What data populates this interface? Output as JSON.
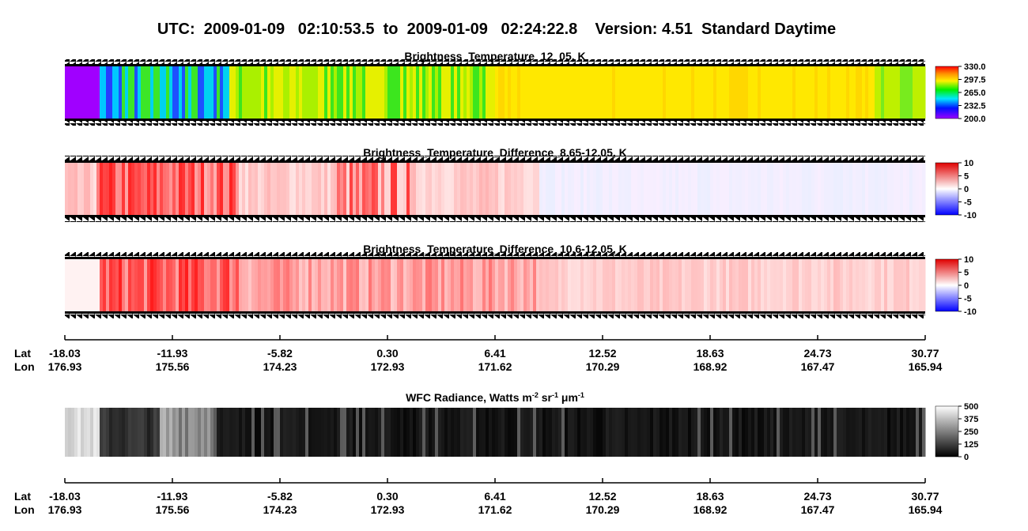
{
  "header": {
    "title": "UTC:  2009-01-09   02:10:53.5  to  2009-01-09   02:24:22.8    Version: 4.51  Standard Daytime"
  },
  "panels": [
    {
      "title": [
        "Brightness_Temperature_12_05, K"
      ],
      "colorbar": [
        "330.0",
        "297.5",
        "265.0",
        "232.5",
        "200.0"
      ]
    },
    {
      "title": [
        "Brightness_Temperature_Difference_8.65-12.05, K"
      ],
      "colorbar": [
        "10",
        "5",
        "0",
        "-5",
        "-10"
      ]
    },
    {
      "title": [
        "Brightness_Temperature_Difference_10.6-12.05, K"
      ],
      "colorbar": [
        "10",
        "5",
        "0",
        "-5",
        "-10"
      ]
    },
    {
      "title": [
        "WFC Radiance, Watts m",
        "-2",
        " sr",
        "-1",
        " μm",
        "-1"
      ],
      "colorbar": [
        "500",
        "375",
        "250",
        "125",
        "0"
      ]
    }
  ],
  "axes": [
    {
      "row_labels": [
        "Lat",
        "Lon"
      ],
      "lat": [
        "-18.03",
        "-11.93",
        "-5.82",
        "0.30",
        "6.41",
        "12.52",
        "18.63",
        "24.73",
        "30.77"
      ],
      "lon": [
        "176.93",
        "175.56",
        "174.23",
        "172.93",
        "171.62",
        "170.29",
        "168.92",
        "167.47",
        "165.94"
      ]
    },
    {
      "row_labels": [
        "Lat",
        "Lon"
      ],
      "lat": [
        "-18.03",
        "-11.93",
        "-5.82",
        "0.30",
        "6.41",
        "12.52",
        "18.63",
        "24.73",
        "30.77"
      ],
      "lon": [
        "176.93",
        "175.56",
        "174.23",
        "172.93",
        "171.62",
        "170.29",
        "168.92",
        "167.47",
        "165.94"
      ]
    }
  ]
}
